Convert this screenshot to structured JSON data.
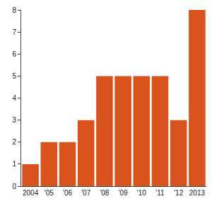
{
  "chart_data": {
    "type": "bar",
    "categories": [
      "2004",
      "'05",
      "'06",
      "'07",
      "'08",
      "'09",
      "'10",
      "'11",
      "'12",
      "2013"
    ],
    "values": [
      1,
      2,
      2,
      3,
      5,
      5,
      5,
      5,
      3,
      8
    ],
    "color": "#d9531e",
    "ylim": [
      0,
      8
    ],
    "yticks": [
      0,
      1,
      2,
      3,
      4,
      5,
      6,
      7,
      8
    ],
    "grid": false
  }
}
